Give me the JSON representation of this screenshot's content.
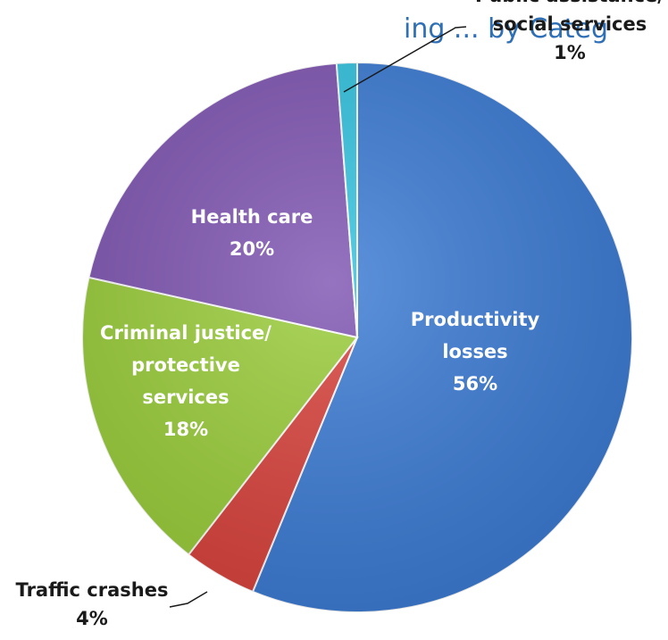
{
  "chart_data": {
    "type": "pie",
    "title_fragment": "ing ... by Categ",
    "slices": [
      {
        "key": "productivity",
        "lines": [
          "Productivity",
          "losses",
          "56%"
        ],
        "value": 56.2,
        "color": "#3b7bd4",
        "label_position": "inside"
      },
      {
        "key": "traffic",
        "lines": [
          "Traffic crashes",
          "4%"
        ],
        "value": 4.3,
        "color": "#d9423c",
        "label_position": "outside"
      },
      {
        "key": "criminal",
        "lines": [
          "Criminal justice/",
          "protective",
          "services",
          "18%"
        ],
        "value": 18.0,
        "color": "#9acd3a",
        "label_position": "inside"
      },
      {
        "key": "health",
        "lines": [
          "Health care",
          "20%"
        ],
        "value": 20.3,
        "color": "#7f55b2",
        "label_position": "inside"
      },
      {
        "key": "public",
        "lines": [
          "Public assistance/",
          "social services",
          "1%"
        ],
        "value": 1.2,
        "color": "#33c3e0",
        "label_position": "outside"
      }
    ],
    "start_angle_deg": 0,
    "direction": "clockwise",
    "legend": "none"
  }
}
